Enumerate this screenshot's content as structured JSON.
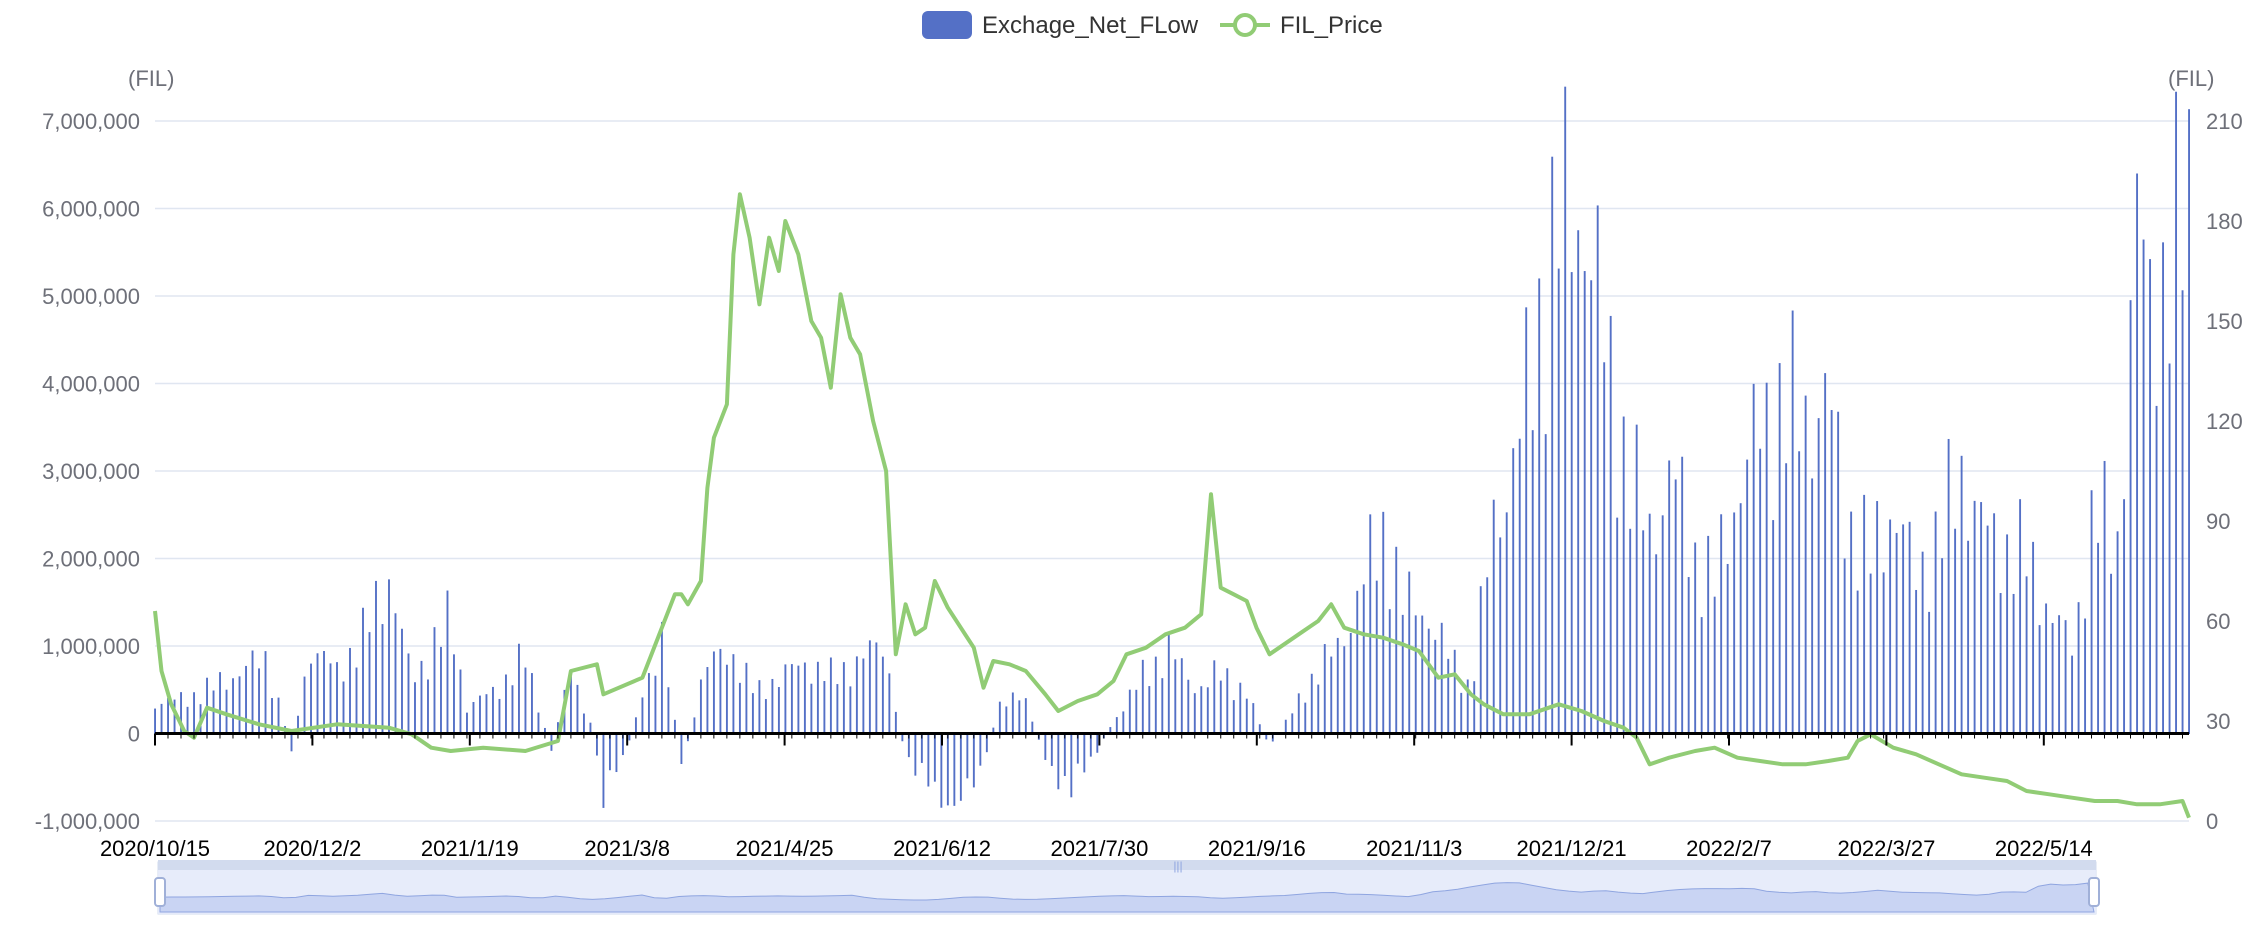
{
  "legend": {
    "net_flow": "Exchage_Net_FLow",
    "price": "FIL_Price"
  },
  "colors": {
    "bar": "#5470c6",
    "line": "#91cc75",
    "grid": "#e0e6f1",
    "zoom_fill": "#e4eafa"
  },
  "chart_data": {
    "type": "bar+line",
    "x_tick_labels": [
      "2020/10/15",
      "2020/12/2",
      "2021/1/19",
      "2021/3/8",
      "2021/4/25",
      "2021/6/12",
      "2021/7/30",
      "2021/9/16",
      "2021/11/3",
      "2021/12/21",
      "2022/2/7",
      "2022/3/27",
      "2022/5/14"
    ],
    "x_range": [
      "2020/10/15",
      "2022/7/3"
    ],
    "y_left": {
      "unit": "(FIL)",
      "min": -1000000,
      "max": 7000000,
      "ticks": [
        "7,000,000",
        "6,000,000",
        "5,000,000",
        "4,000,000",
        "3,000,000",
        "2,000,000",
        "1,000,000",
        "0",
        "-1,000,000"
      ]
    },
    "y_right": {
      "unit": "(FIL)",
      "min": 0,
      "max": 210,
      "ticks": [
        "210",
        "180",
        "150",
        "120",
        "90",
        "60",
        "30",
        "0"
      ]
    },
    "series": [
      {
        "name": "Exchage_Net_FLow",
        "type": "bar",
        "axis": "left",
        "points": [
          [
            "2020/10/15",
            350000
          ],
          [
            "2020/10/25",
            400000
          ],
          [
            "2020/11/3",
            550000
          ],
          [
            "2020/11/12",
            750000
          ],
          [
            "2020/11/18",
            850000
          ],
          [
            "2020/11/26",
            -150000
          ],
          [
            "2020/12/2",
            1000000
          ],
          [
            "2020/12/10",
            700000
          ],
          [
            "2020/12/18",
            1100000
          ],
          [
            "2020/12/26",
            1800000
          ],
          [
            "2021/1/2",
            600000
          ],
          [
            "2021/1/8",
            950000
          ],
          [
            "2021/1/14",
            1300000
          ],
          [
            "2021/1/19",
            300000
          ],
          [
            "2021/1/28",
            500000
          ],
          [
            "2021/2/6",
            850000
          ],
          [
            "2021/2/14",
            -200000
          ],
          [
            "2021/2/20",
            750000
          ],
          [
            "2021/2/26",
            100000
          ],
          [
            "2021/3/2",
            -650000
          ],
          [
            "2021/3/8",
            -300000
          ],
          [
            "2021/3/14",
            400000
          ],
          [
            "2021/3/20",
            1150000
          ],
          [
            "2021/3/26",
            -400000
          ],
          [
            "2021/4/2",
            750000
          ],
          [
            "2021/4/10",
            950000
          ],
          [
            "2021/4/18",
            450000
          ],
          [
            "2021/4/25",
            650000
          ],
          [
            "2021/5/3",
            800000
          ],
          [
            "2021/5/11",
            650000
          ],
          [
            "2021/5/19",
            800000
          ],
          [
            "2021/5/27",
            1050000
          ],
          [
            "2021/6/3",
            -250000
          ],
          [
            "2021/6/12",
            -650000
          ],
          [
            "2021/6/19",
            -850000
          ],
          [
            "2021/6/26",
            -400000
          ],
          [
            "2021/7/3",
            450000
          ],
          [
            "2021/7/10",
            350000
          ],
          [
            "2021/7/17",
            -400000
          ],
          [
            "2021/7/24",
            -600000
          ],
          [
            "2021/7/30",
            -300000
          ],
          [
            "2021/8/7",
            200000
          ],
          [
            "2021/8/15",
            650000
          ],
          [
            "2021/8/23",
            950000
          ],
          [
            "2021/9/1",
            500000
          ],
          [
            "2021/9/8",
            700000
          ],
          [
            "2021/9/16",
            450000
          ],
          [
            "2021/9/23",
            -150000
          ],
          [
            "2021/10/1",
            300000
          ],
          [
            "2021/10/8",
            750000
          ],
          [
            "2021/10/15",
            1000000
          ],
          [
            "2021/10/22",
            1800000
          ],
          [
            "2021/10/29",
            2300000
          ],
          [
            "2021/11/3",
            1500000
          ],
          [
            "2021/11/10",
            1400000
          ],
          [
            "2021/11/17",
            900000
          ],
          [
            "2021/11/24",
            500000
          ],
          [
            "2021/12/1",
            2400000
          ],
          [
            "2021/12/8",
            3200000
          ],
          [
            "2021/12/14",
            4500000
          ],
          [
            "2021/12/21",
            5800000
          ],
          [
            "2021/12/28",
            6100000
          ],
          [
            "2022/1/4",
            4500000
          ],
          [
            "2022/1/11",
            3000000
          ],
          [
            "2022/1/18",
            2300000
          ],
          [
            "2022/1/25",
            3000000
          ],
          [
            "2022/2/1",
            2000000
          ],
          [
            "2022/2/7",
            1700000
          ],
          [
            "2022/2/14",
            2800000
          ],
          [
            "2022/2/21",
            3500000
          ],
          [
            "2022/2/28",
            3700000
          ],
          [
            "2022/3/7",
            3600000
          ],
          [
            "2022/3/14",
            3800000
          ],
          [
            "2022/3/20",
            2400000
          ],
          [
            "2022/3/27",
            2000000
          ],
          [
            "2022/4/3",
            2600000
          ],
          [
            "2022/4/10",
            1800000
          ],
          [
            "2022/4/17",
            2200000
          ],
          [
            "2022/4/24",
            3000000
          ],
          [
            "2022/5/1",
            2300000
          ],
          [
            "2022/5/8",
            2100000
          ],
          [
            "2022/5/14",
            2000000
          ],
          [
            "2022/5/21",
            1400000
          ],
          [
            "2022/5/28",
            1000000
          ],
          [
            "2022/6/4",
            2500000
          ],
          [
            "2022/6/11",
            2200000
          ],
          [
            "2022/6/17",
            5800000
          ],
          [
            "2022/6/21",
            5000000
          ],
          [
            "2022/6/27",
            5200000
          ],
          [
            "2022/7/3",
            6100000
          ]
        ]
      },
      {
        "name": "FIL_Price",
        "type": "line",
        "axis": "right",
        "points": [
          [
            "2020/10/15",
            63
          ],
          [
            "2020/10/17",
            45
          ],
          [
            "2020/10/20",
            35
          ],
          [
            "2020/10/24",
            27
          ],
          [
            "2020/10/27",
            25
          ],
          [
            "2020/10/31",
            34
          ],
          [
            "2020/11/6",
            32
          ],
          [
            "2020/11/16",
            29
          ],
          [
            "2020/11/26",
            27
          ],
          [
            "2020/12/10",
            29
          ],
          [
            "2020/12/26",
            28
          ],
          [
            "2021/1/2",
            26
          ],
          [
            "2021/1/8",
            22
          ],
          [
            "2021/1/14",
            21
          ],
          [
            "2021/1/24",
            22
          ],
          [
            "2021/2/6",
            21
          ],
          [
            "2021/2/16",
            24
          ],
          [
            "2021/2/20",
            45
          ],
          [
            "2021/2/28",
            47
          ],
          [
            "2021/3/2",
            38
          ],
          [
            "2021/3/14",
            43
          ],
          [
            "2021/3/20",
            58
          ],
          [
            "2021/3/24",
            68
          ],
          [
            "2021/3/26",
            68
          ],
          [
            "2021/3/28",
            65
          ],
          [
            "2021/4/1",
            72
          ],
          [
            "2021/4/3",
            100
          ],
          [
            "2021/4/5",
            115
          ],
          [
            "2021/4/9",
            125
          ],
          [
            "2021/4/11",
            170
          ],
          [
            "2021/4/13",
            188
          ],
          [
            "2021/4/16",
            175
          ],
          [
            "2021/4/19",
            155
          ],
          [
            "2021/4/22",
            175
          ],
          [
            "2021/4/25",
            165
          ],
          [
            "2021/4/27",
            180
          ],
          [
            "2021/5/1",
            170
          ],
          [
            "2021/5/5",
            150
          ],
          [
            "2021/5/8",
            145
          ],
          [
            "2021/5/11",
            130
          ],
          [
            "2021/5/14",
            158
          ],
          [
            "2021/5/17",
            145
          ],
          [
            "2021/5/20",
            140
          ],
          [
            "2021/5/24",
            120
          ],
          [
            "2021/5/28",
            105
          ],
          [
            "2021/5/31",
            50
          ],
          [
            "2021/6/3",
            65
          ],
          [
            "2021/6/6",
            56
          ],
          [
            "2021/6/9",
            58
          ],
          [
            "2021/6/12",
            72
          ],
          [
            "2021/6/16",
            64
          ],
          [
            "2021/6/20",
            58
          ],
          [
            "2021/6/24",
            52
          ],
          [
            "2021/6/27",
            40
          ],
          [
            "2021/6/30",
            48
          ],
          [
            "2021/7/5",
            47
          ],
          [
            "2021/7/10",
            45
          ],
          [
            "2021/7/16",
            38
          ],
          [
            "2021/7/20",
            33
          ],
          [
            "2021/7/26",
            36
          ],
          [
            "2021/8/1",
            38
          ],
          [
            "2021/8/6",
            42
          ],
          [
            "2021/8/10",
            50
          ],
          [
            "2021/8/16",
            52
          ],
          [
            "2021/8/22",
            56
          ],
          [
            "2021/8/28",
            58
          ],
          [
            "2021/9/2",
            62
          ],
          [
            "2021/9/5",
            98
          ],
          [
            "2021/9/8",
            70
          ],
          [
            "2021/9/12",
            68
          ],
          [
            "2021/9/16",
            66
          ],
          [
            "2021/9/19",
            58
          ],
          [
            "2021/9/23",
            50
          ],
          [
            "2021/9/26",
            52
          ],
          [
            "2021/10/2",
            56
          ],
          [
            "2021/10/8",
            60
          ],
          [
            "2021/10/12",
            65
          ],
          [
            "2021/10/16",
            58
          ],
          [
            "2021/10/22",
            56
          ],
          [
            "2021/10/28",
            55
          ],
          [
            "2021/11/3",
            53
          ],
          [
            "2021/11/8",
            51
          ],
          [
            "2021/11/14",
            43
          ],
          [
            "2021/11/19",
            44
          ],
          [
            "2021/11/24",
            38
          ],
          [
            "2021/11/28",
            35
          ],
          [
            "2021/12/4",
            32
          ],
          [
            "2021/12/12",
            32
          ],
          [
            "2021/12/21",
            35
          ],
          [
            "2021/12/28",
            33
          ],
          [
            "2022/1/4",
            30
          ],
          [
            "2022/1/10",
            28
          ],
          [
            "2022/1/14",
            25
          ],
          [
            "2022/1/18",
            17
          ],
          [
            "2022/1/24",
            19
          ],
          [
            "2022/2/1",
            21
          ],
          [
            "2022/2/7",
            22
          ],
          [
            "2022/2/14",
            19
          ],
          [
            "2022/2/21",
            18
          ],
          [
            "2022/2/28",
            17
          ],
          [
            "2022/3/7",
            17
          ],
          [
            "2022/3/14",
            18
          ],
          [
            "2022/3/20",
            19
          ],
          [
            "2022/3/23",
            24
          ],
          [
            "2022/3/27",
            26
          ],
          [
            "2022/4/3",
            22
          ],
          [
            "2022/4/10",
            20
          ],
          [
            "2022/4/17",
            17
          ],
          [
            "2022/4/24",
            14
          ],
          [
            "2022/5/1",
            13
          ],
          [
            "2022/5/8",
            12
          ],
          [
            "2022/5/14",
            9
          ],
          [
            "2022/5/21",
            8
          ],
          [
            "2022/5/28",
            7
          ],
          [
            "2022/6/4",
            6
          ],
          [
            "2022/6/11",
            6
          ],
          [
            "2022/6/17",
            5
          ],
          [
            "2022/6/24",
            5
          ],
          [
            "2022/7/1",
            6
          ],
          [
            "2022/7/3",
            1
          ]
        ]
      }
    ],
    "grid": true,
    "legend_position": "top-center",
    "data_zoom": {
      "start": 0,
      "end": 100
    }
  }
}
